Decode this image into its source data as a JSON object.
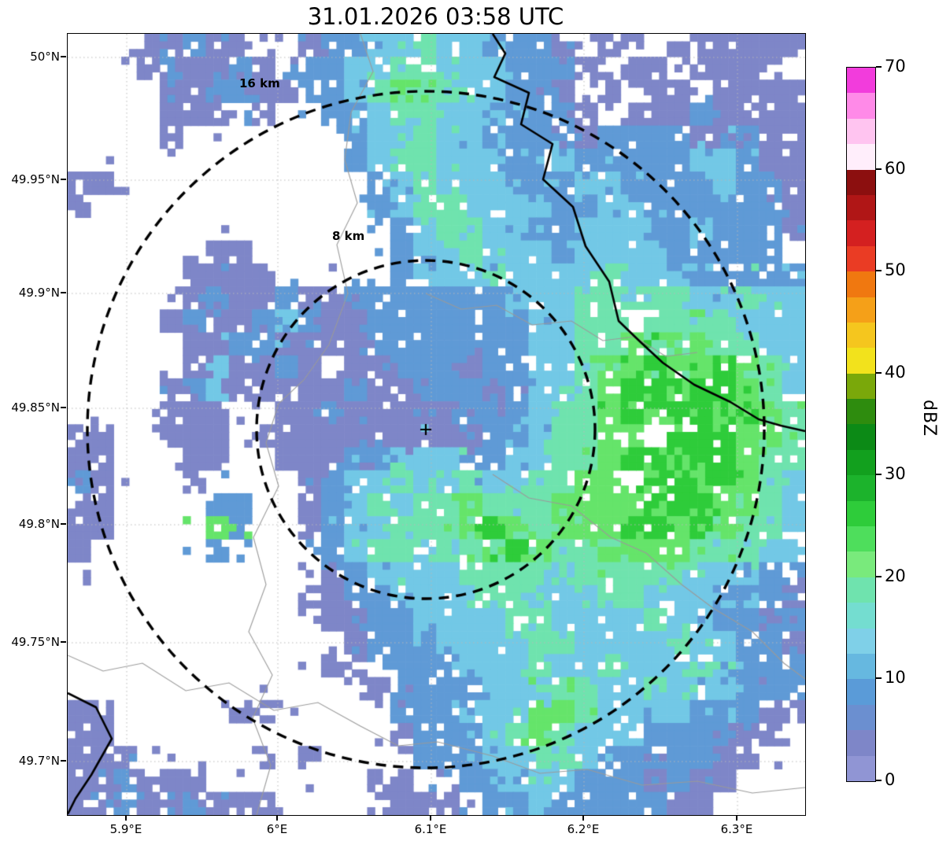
{
  "title": "31.01.2026 03:58 UTC",
  "axes": {
    "x_tick_labels": [
      "5.9°E",
      "6°E",
      "6.1°E",
      "6.2°E",
      "6.3°E"
    ],
    "y_tick_labels": [
      "50°N",
      "49.95°N",
      "49.9°N",
      "49.85°N",
      "49.8°N",
      "49.75°N",
      "49.7°N"
    ]
  },
  "rings": [
    {
      "label": "16 km",
      "radius_km": 16
    },
    {
      "label": "8 km",
      "radius_km": 8
    }
  ],
  "center_marker_symbol": "+",
  "colorbar": {
    "label": "dBZ",
    "ticks": [
      70,
      60,
      50,
      40,
      30,
      20,
      10,
      0
    ],
    "colors_top_to_bottom": [
      "#f23cdc",
      "#ff8ae8",
      "#ffc4f0",
      "#ffeefb",
      "#8c0f0f",
      "#b01616",
      "#d42020",
      "#ea3c24",
      "#f07810",
      "#f5a018",
      "#f5c61e",
      "#f2e21c",
      "#7aa80a",
      "#2e8c0e",
      "#0c8a16",
      "#12a01e",
      "#1cb32c",
      "#2ecc3a",
      "#4ede5c",
      "#79ea7c",
      "#6fe3ae",
      "#74ddd0",
      "#7fd0e8",
      "#66b8e0",
      "#5a9bd8",
      "#6b8fd0",
      "#7e86c8",
      "#9095d4"
    ]
  },
  "chart_data": {
    "type": "heatmap",
    "title": "31.01.2026 03:58 UTC",
    "units": "dBZ",
    "xlabel_ticks": [
      "5.9°E",
      "6°E",
      "6.1°E",
      "6.2°E",
      "6.3°E"
    ],
    "ylabel_ticks": [
      "50°N",
      "49.95°N",
      "49.9°N",
      "49.85°N",
      "49.8°N",
      "49.75°N",
      "49.7°N"
    ],
    "lon_range": [
      5.861,
      6.344
    ],
    "lat_range": [
      49.677,
      50.01
    ],
    "radar_center": {
      "lon": 6.096,
      "lat": 49.841
    },
    "range_rings_km": [
      8,
      16
    ],
    "colorbar_range_dbz": [
      0,
      70
    ],
    "levels_dbz": [
      0,
      5,
      10,
      15,
      20,
      25,
      30
    ],
    "level_colors": [
      "#7e86c8",
      "#5f9ad6",
      "#72c8e6",
      "#6fe3ae",
      "#65e46a",
      "#2ecc3a",
      "#12a01e"
    ],
    "grid_encoding": "rows north to south, 32 columns west to east; '.' = no echo, digits 1-7 = reflectivity class index into levels_dbz",
    "grid_rows_north_to_south": [
      "...11211..122334332221.11.111111",
      "...121121.2233443332221.11.1111.",
      "....112211223454433221.1.11.1111",
      "....111.1..223443332221.11121111",
      "....1.......23343322221222211211",
      "............23443332232222233211",
      "11...........2343332223322223221",
      "1............2344333322332222221",
      "..............234433223332232221",
      "......11......23343332333322222.",
      ".....1111.....233343333433322222",
      ".....121121122222223334444433433",
      "....12112321122222223344.4444333",
      ".....112211112222222334454454433",
      ".....131121.11222122334556556543",
      "....1231111121122212334566566543",
      "....111..11211111222344565665654",
      "11..111.11111111112234455.666554",
      "11...11..11122333223344566566544",
      "21...1....12334334334455.5656543",
      "11....22..1234344544455556665543",
      "11....52..1233444565455566565443",
      "1.....2....234434456544555544433",
      "...........123333444434444433322",
      "..........1122333344333443332221",
      "...........112233334433334332212",
      "............12223333443333433221",
      "...........11.222333433433343222",
      ".............1222233344334333222",
      "11.....11.....222333554333322211",
      "11............12223454333222211.",
      "111.....1.1....222334432222211..",
      "112111.......11..223332221211...",
      "112112111....1111.2232222211...."
    ]
  }
}
